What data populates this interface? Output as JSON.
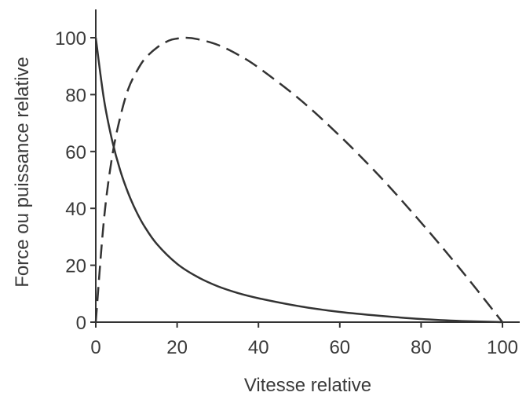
{
  "chart_data": {
    "type": "line",
    "title": "",
    "xlabel": "Vitesse relative",
    "ylabel": "Force ou puissance relative",
    "xlim": [
      0,
      100
    ],
    "ylim": [
      0,
      100
    ],
    "x_ticks": [
      0,
      20,
      40,
      60,
      80,
      100
    ],
    "y_ticks": [
      0,
      20,
      40,
      60,
      80,
      100
    ],
    "grid": false,
    "legend": "none",
    "series": [
      {
        "style": "solid",
        "color": "#333333",
        "x": [
          0,
          2,
          4,
          6,
          8,
          10,
          12,
          15,
          20,
          25,
          30,
          35,
          40,
          50,
          60,
          70,
          80,
          90,
          100
        ],
        "y": [
          100,
          78.4,
          64.0,
          53.4,
          45.3,
          38.8,
          33.6,
          27.5,
          20.5,
          15.9,
          12.6,
          10.2,
          8.4,
          5.6,
          3.6,
          2.2,
          1.1,
          0.4,
          0
        ]
      },
      {
        "style": "dashed",
        "color": "#333333",
        "x": [
          0,
          2,
          4,
          6,
          8,
          10,
          12,
          15,
          18,
          20,
          22,
          25,
          30,
          35,
          40,
          50,
          60,
          70,
          80,
          90,
          100
        ],
        "y": [
          0,
          36,
          58,
          72,
          82,
          88,
          92.5,
          96.5,
          99,
          99.7,
          100,
          99.5,
          97.5,
          94,
          89.5,
          78.5,
          65.5,
          51,
          35,
          18,
          0
        ]
      }
    ]
  }
}
